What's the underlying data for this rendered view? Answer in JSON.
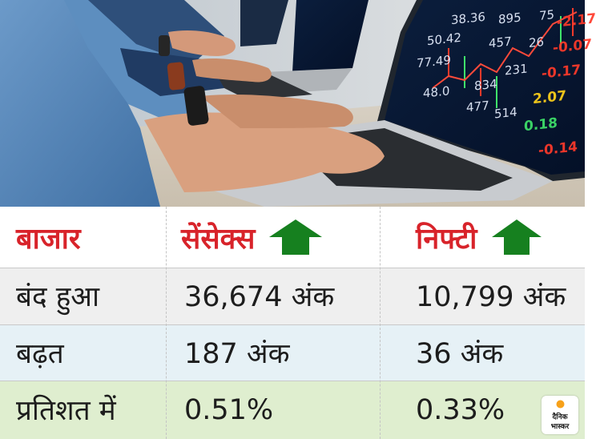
{
  "photo": {
    "screen_numbers": [
      {
        "text": "38.36",
        "tone": "white"
      },
      {
        "text": "895",
        "tone": "white"
      },
      {
        "text": "75",
        "tone": "white"
      },
      {
        "text": "-2.17",
        "tone": "red"
      },
      {
        "text": "50.42",
        "tone": "white"
      },
      {
        "text": "457",
        "tone": "white"
      },
      {
        "text": "26",
        "tone": "white"
      },
      {
        "text": "-0.07",
        "tone": "red"
      },
      {
        "text": "77.49",
        "tone": "white"
      },
      {
        "text": "231",
        "tone": "white"
      },
      {
        "text": "-0.17",
        "tone": "red"
      },
      {
        "text": "834",
        "tone": "white"
      },
      {
        "text": "2.07",
        "tone": "yellow"
      },
      {
        "text": "48.0",
        "tone": "white"
      },
      {
        "text": "477",
        "tone": "white"
      },
      {
        "text": "514",
        "tone": "white"
      },
      {
        "text": "0.18",
        "tone": "green"
      },
      {
        "text": "-0.14",
        "tone": "red"
      }
    ]
  },
  "table": {
    "header": {
      "label": "बाजार",
      "col1": "सेंसेक्स",
      "col2": "निफ्टी",
      "arrow_icon": "up-arrow-icon"
    },
    "rows": [
      {
        "label": "बंद हुआ",
        "col1": "36,674 अंक",
        "col2": "10,799 अंक"
      },
      {
        "label": "बढ़त",
        "col1": "187 अंक",
        "col2": "36 अंक"
      },
      {
        "label": "प्रतिशत में",
        "col1": "0.51%",
        "col2": "0.33%"
      }
    ]
  },
  "logo": {
    "line1": "दैनिक",
    "line2": "भास्कर"
  },
  "colors": {
    "header_text": "#d8232a",
    "arrow_green": "#16801f",
    "row1_bg": "#efefef",
    "row2_bg": "#e6f1f6",
    "row3_bg": "#dfeecf"
  }
}
